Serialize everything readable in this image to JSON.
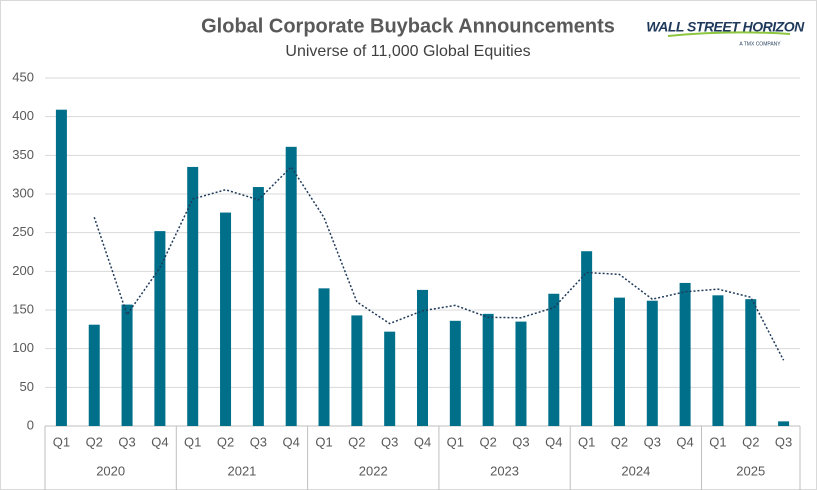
{
  "chart_data": {
    "type": "bar",
    "title": "Global Corporate Buyback Announcements",
    "subtitle": "Universe of 11,000 Global Equities",
    "logo": {
      "name": "WALL STREET HORIZON",
      "tagline": "A TMX COMPANY"
    },
    "categories": [
      "Q1",
      "Q2",
      "Q3",
      "Q4",
      "Q1",
      "Q2",
      "Q3",
      "Q4",
      "Q1",
      "Q2",
      "Q3",
      "Q4",
      "Q1",
      "Q2",
      "Q3",
      "Q4",
      "Q1",
      "Q2",
      "Q3",
      "Q4",
      "Q1",
      "Q2",
      "Q3"
    ],
    "groups": [
      "2020",
      "2021",
      "2022",
      "2023",
      "2024",
      "2025"
    ],
    "series": [
      {
        "type": "bar",
        "color": "#00708a",
        "values": [
          409,
          131,
          157,
          252,
          335,
          276,
          309,
          361,
          178,
          143,
          122,
          176,
          136,
          145,
          135,
          171,
          226,
          166,
          162,
          185,
          169,
          164,
          6
        ]
      },
      {
        "type": "line",
        "color": "#1f3a5a",
        "values": [
          null,
          270,
          144,
          204.5,
          293.5,
          305.5,
          292.5,
          335,
          269.5,
          160.5,
          132.5,
          149,
          156,
          140.5,
          140,
          153,
          198.5,
          196,
          164,
          173.5,
          177,
          166.5,
          85
        ]
      }
    ],
    "ylim": [
      0,
      450
    ],
    "yticks": [
      0,
      50,
      100,
      150,
      200,
      250,
      300,
      350,
      400,
      450
    ],
    "grid": true
  }
}
